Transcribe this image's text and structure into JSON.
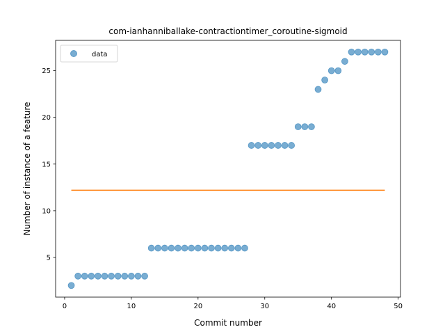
{
  "chart_data": {
    "type": "scatter",
    "title": "com-ianhanniballake-contractiontimer_coroutine-sigmoid",
    "xlabel": "Commit number",
    "ylabel": "Number of instance of a feature",
    "xlim": [
      -1.35,
      50.35
    ],
    "ylim": [
      0.75,
      28.25
    ],
    "xticks": [
      0,
      10,
      20,
      30,
      40,
      50
    ],
    "yticks": [
      5,
      10,
      15,
      20,
      25
    ],
    "legend_position": "upper-left",
    "grid": false,
    "series": [
      {
        "name": "data",
        "kind": "scatter",
        "color": "#1f77b4",
        "x": [
          1,
          2,
          3,
          4,
          5,
          6,
          7,
          8,
          9,
          10,
          11,
          12,
          13,
          14,
          15,
          16,
          17,
          18,
          19,
          20,
          21,
          22,
          23,
          24,
          25,
          26,
          27,
          28,
          29,
          30,
          31,
          32,
          33,
          34,
          35,
          36,
          37,
          38,
          39,
          40,
          41,
          42,
          43,
          44,
          45,
          46,
          47,
          48
        ],
        "y": [
          2,
          3,
          3,
          3,
          3,
          3,
          3,
          3,
          3,
          3,
          3,
          3,
          6,
          6,
          6,
          6,
          6,
          6,
          6,
          6,
          6,
          6,
          6,
          6,
          6,
          6,
          6,
          17,
          17,
          17,
          17,
          17,
          17,
          17,
          19,
          19,
          19,
          23,
          24,
          25,
          25,
          26,
          27,
          27,
          27,
          27,
          27,
          27
        ]
      },
      {
        "kind": "line",
        "color": "#ff7f0e",
        "x": [
          1,
          48
        ],
        "y": [
          12.2,
          12.2
        ]
      }
    ]
  }
}
